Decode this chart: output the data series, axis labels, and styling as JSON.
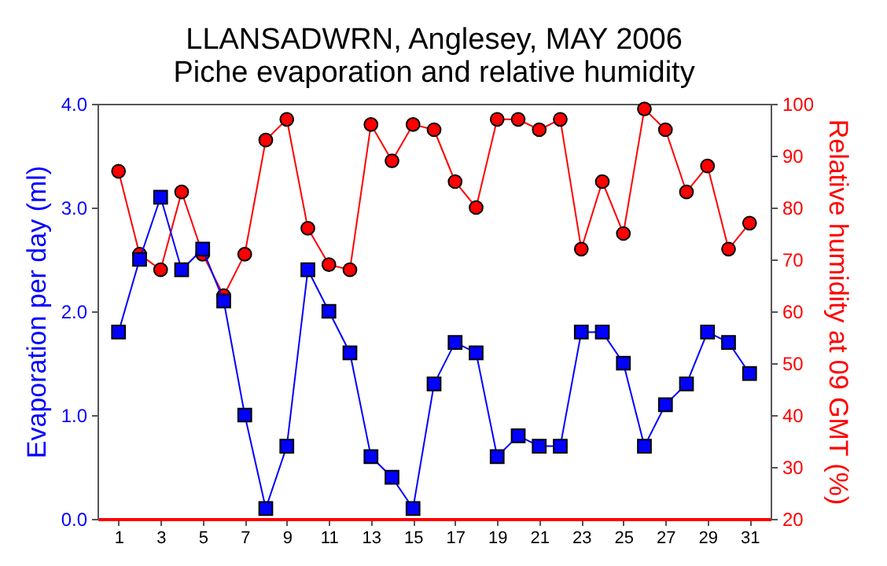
{
  "chart_data": {
    "type": "line",
    "title": "LLANSADWRN, Anglesey, MAY 2006",
    "subtitle": "Piche evaporation and relative humidity",
    "ylabel": "Evaporation per day (ml)",
    "y2label": "Relative humidity at 09 GMT (%)",
    "x": [
      1,
      2,
      3,
      4,
      5,
      6,
      7,
      8,
      9,
      10,
      11,
      12,
      13,
      14,
      15,
      16,
      17,
      18,
      19,
      20,
      21,
      22,
      23,
      24,
      25,
      26,
      27,
      28,
      29,
      30,
      31
    ],
    "xlim": [
      0,
      32
    ],
    "xticks": [
      1,
      3,
      5,
      7,
      9,
      11,
      13,
      15,
      17,
      19,
      21,
      23,
      25,
      27,
      29,
      31
    ],
    "ylim": [
      0,
      4
    ],
    "yticks": [
      {
        "value": 0,
        "label": "0.0"
      },
      {
        "value": 1,
        "label": "1.0"
      },
      {
        "value": 2,
        "label": "2.0"
      },
      {
        "value": 3,
        "label": "3.0"
      },
      {
        "value": 4,
        "label": "4.0"
      }
    ],
    "y2lim": [
      20,
      100
    ],
    "y2ticks": [
      20,
      30,
      40,
      50,
      60,
      70,
      80,
      90,
      100
    ],
    "series": [
      {
        "color": "#0000ff",
        "marker": "square",
        "values": [
          1.8,
          2.5,
          3.1,
          2.4,
          2.6,
          2.1,
          1.0,
          0.1,
          0.7,
          2.4,
          2.0,
          1.6,
          0.6,
          0.4,
          0.1,
          1.3,
          1.7,
          1.6,
          0.6,
          0.8,
          0.7,
          0.7,
          1.8,
          1.8,
          1.5,
          0.7,
          1.1,
          1.3,
          1.8,
          1.7,
          1.4
        ]
      },
      {
        "color": "#ff0000",
        "marker": "circle",
        "axis": "y2",
        "values": [
          87,
          71,
          68,
          83,
          71,
          63,
          71,
          93,
          97,
          76,
          69,
          68,
          96,
          89,
          96,
          95,
          85,
          80,
          97,
          97,
          95,
          97,
          72,
          85,
          75,
          99,
          95,
          83,
          88,
          72,
          77
        ]
      }
    ]
  }
}
